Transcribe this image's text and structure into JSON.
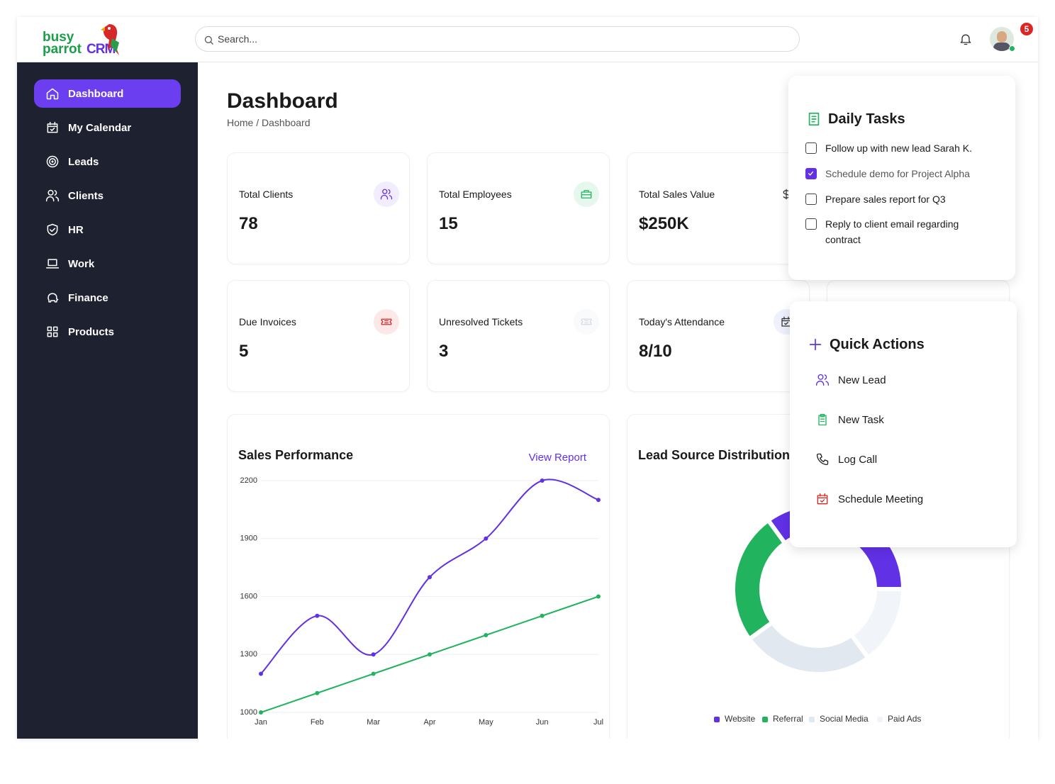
{
  "header": {
    "logo": {
      "line1": "busy",
      "line2": "parrot",
      "brand": "CRM"
    },
    "search_placeholder": "Search...",
    "notification_count": 5
  },
  "sidebar": {
    "items": [
      {
        "label": "Dashboard",
        "active": true
      },
      {
        "label": "My Calendar"
      },
      {
        "label": "Leads"
      },
      {
        "label": "Clients"
      },
      {
        "label": "HR"
      },
      {
        "label": "Work"
      },
      {
        "label": "Finance"
      },
      {
        "label": "Products"
      }
    ]
  },
  "page": {
    "title": "Dashboard",
    "breadcrumb": "Home / Dashboard"
  },
  "stats": [
    {
      "label": "Total Clients",
      "value": "78"
    },
    {
      "label": "Total Employees",
      "value": "15"
    },
    {
      "label": "Total Sales Value",
      "value": "$250K"
    },
    {
      "label": "Due Invoices",
      "value": "5"
    },
    {
      "label": "Unresolved Tickets",
      "value": "3"
    },
    {
      "label": "Today's Attendance",
      "value": "8/10"
    }
  ],
  "chart_data": [
    {
      "type": "line",
      "title": "Sales Performance",
      "link": "View Report",
      "categories": [
        "Jan",
        "Feb",
        "Mar",
        "Apr",
        "May",
        "Jun",
        "Jul"
      ],
      "series": [
        {
          "color": "#6131e6",
          "smooth": true,
          "values": [
            1200,
            1500,
            1300,
            1700,
            1900,
            2200,
            2100
          ]
        },
        {
          "color": "#22b35e",
          "smooth": false,
          "values": [
            1000,
            1100,
            1200,
            1300,
            1400,
            1500,
            1600
          ]
        }
      ],
      "ylim": [
        1000,
        2200
      ],
      "yticks": [
        1000,
        1300,
        1600,
        1900,
        2200
      ],
      "grid": true
    },
    {
      "type": "pie",
      "donut": true,
      "title": "Lead Source Distribution",
      "categories": [
        "Website",
        "Referral",
        "Social Media",
        "Paid Ads"
      ],
      "values": [
        35,
        25,
        25,
        15
      ],
      "colors": [
        "#6131e6",
        "#22b35e",
        "#e2e8f0",
        "#f1f5f9"
      ]
    }
  ],
  "daily_tasks": {
    "title": "Daily Tasks",
    "tasks": [
      {
        "text": "Follow up with new lead Sarah K.",
        "done": false
      },
      {
        "text": "Schedule demo for Project Alpha",
        "done": true
      },
      {
        "text": "Prepare sales report for Q3",
        "done": false
      },
      {
        "text": "Reply to client email regarding contract",
        "done": false
      }
    ]
  },
  "quick_actions": {
    "title": "Quick Actions",
    "items": [
      "New Lead",
      "New Task",
      "Log Call",
      "Schedule Meeting"
    ]
  }
}
